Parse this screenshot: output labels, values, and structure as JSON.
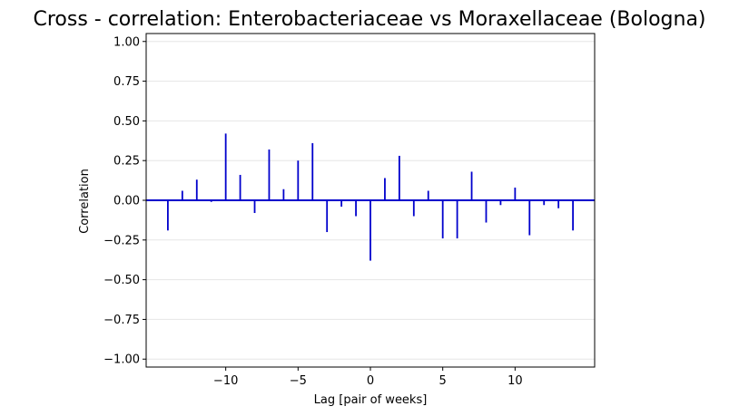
{
  "chart_data": {
    "type": "bar",
    "title": "Cross - correlation: Enterobacteriaceae vs Moraxellaceae (Bologna)",
    "xlabel": "Lag [pair of weeks]",
    "ylabel": "Correlation",
    "xlim": [
      -15.5,
      15.5
    ],
    "ylim": [
      -1.05,
      1.05
    ],
    "xticks": [
      -10,
      -5,
      0,
      5,
      10
    ],
    "xtick_labels": [
      "−10",
      "−5",
      "0",
      "5",
      "10"
    ],
    "yticks": [
      -1.0,
      -0.75,
      -0.5,
      -0.25,
      0.0,
      0.25,
      0.5,
      0.75,
      1.0
    ],
    "ytick_labels": [
      "−1.00",
      "−0.75",
      "−0.50",
      "−0.25",
      "0.00",
      "0.25",
      "0.50",
      "0.75",
      "1.00"
    ],
    "grid": "horizontal",
    "baseline": 0,
    "colors": {
      "bar": "#0000cc",
      "baseline": "#0000cc",
      "grid": "#e6e6e6"
    },
    "series": [
      {
        "lags": [
          -14,
          -13,
          -12,
          -11,
          -10,
          -9,
          -8,
          -7,
          -6,
          -5,
          -4,
          -3,
          -2,
          -1,
          0,
          1,
          2,
          3,
          4,
          5,
          6,
          7,
          8,
          9,
          10,
          11,
          12,
          13,
          14
        ],
        "values": [
          -0.19,
          0.06,
          0.13,
          -0.01,
          0.42,
          0.16,
          -0.08,
          0.32,
          0.07,
          0.25,
          0.36,
          -0.2,
          -0.04,
          -0.1,
          -0.38,
          0.14,
          0.28,
          -0.1,
          0.06,
          -0.24,
          -0.24,
          0.18,
          -0.14,
          -0.03,
          0.08,
          -0.22,
          -0.03,
          -0.05,
          -0.19
        ]
      }
    ]
  }
}
